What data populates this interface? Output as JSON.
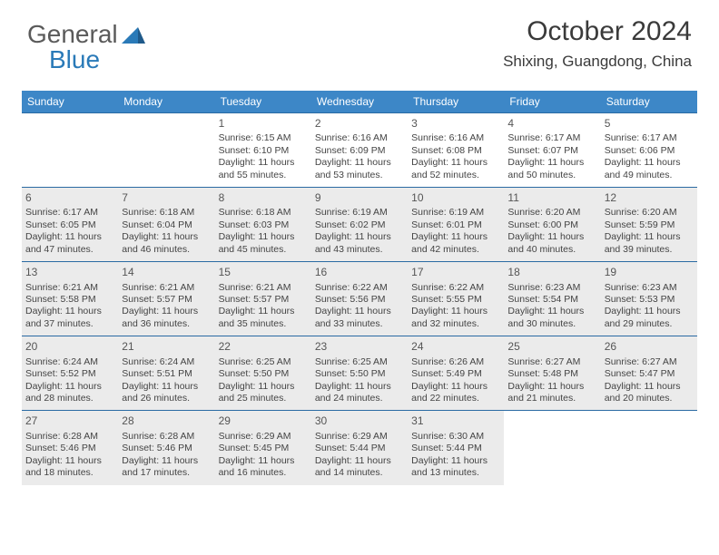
{
  "logo": {
    "text1": "General",
    "text2": "Blue"
  },
  "title": "October 2024",
  "subtitle": "Shixing, Guangdong, China",
  "colors": {
    "header_bg": "#3d87c7",
    "header_fg": "#ffffff",
    "cell_border": "#2a6aa3",
    "shade_bg": "#ebebeb",
    "text": "#444444",
    "logo_gray": "#5a5a5a",
    "logo_blue": "#2a7ab8"
  },
  "weekdays": [
    "Sunday",
    "Monday",
    "Tuesday",
    "Wednesday",
    "Thursday",
    "Friday",
    "Saturday"
  ],
  "weeks": [
    [
      {
        "day": "",
        "sunrise": "",
        "sunset": "",
        "daylight": "",
        "shade": false
      },
      {
        "day": "",
        "sunrise": "",
        "sunset": "",
        "daylight": "",
        "shade": false
      },
      {
        "day": "1",
        "sunrise": "Sunrise: 6:15 AM",
        "sunset": "Sunset: 6:10 PM",
        "daylight": "Daylight: 11 hours and 55 minutes.",
        "shade": false
      },
      {
        "day": "2",
        "sunrise": "Sunrise: 6:16 AM",
        "sunset": "Sunset: 6:09 PM",
        "daylight": "Daylight: 11 hours and 53 minutes.",
        "shade": false
      },
      {
        "day": "3",
        "sunrise": "Sunrise: 6:16 AM",
        "sunset": "Sunset: 6:08 PM",
        "daylight": "Daylight: 11 hours and 52 minutes.",
        "shade": false
      },
      {
        "day": "4",
        "sunrise": "Sunrise: 6:17 AM",
        "sunset": "Sunset: 6:07 PM",
        "daylight": "Daylight: 11 hours and 50 minutes.",
        "shade": false
      },
      {
        "day": "5",
        "sunrise": "Sunrise: 6:17 AM",
        "sunset": "Sunset: 6:06 PM",
        "daylight": "Daylight: 11 hours and 49 minutes.",
        "shade": false
      }
    ],
    [
      {
        "day": "6",
        "sunrise": "Sunrise: 6:17 AM",
        "sunset": "Sunset: 6:05 PM",
        "daylight": "Daylight: 11 hours and 47 minutes.",
        "shade": true
      },
      {
        "day": "7",
        "sunrise": "Sunrise: 6:18 AM",
        "sunset": "Sunset: 6:04 PM",
        "daylight": "Daylight: 11 hours and 46 minutes.",
        "shade": true
      },
      {
        "day": "8",
        "sunrise": "Sunrise: 6:18 AM",
        "sunset": "Sunset: 6:03 PM",
        "daylight": "Daylight: 11 hours and 45 minutes.",
        "shade": true
      },
      {
        "day": "9",
        "sunrise": "Sunrise: 6:19 AM",
        "sunset": "Sunset: 6:02 PM",
        "daylight": "Daylight: 11 hours and 43 minutes.",
        "shade": true
      },
      {
        "day": "10",
        "sunrise": "Sunrise: 6:19 AM",
        "sunset": "Sunset: 6:01 PM",
        "daylight": "Daylight: 11 hours and 42 minutes.",
        "shade": true
      },
      {
        "day": "11",
        "sunrise": "Sunrise: 6:20 AM",
        "sunset": "Sunset: 6:00 PM",
        "daylight": "Daylight: 11 hours and 40 minutes.",
        "shade": true
      },
      {
        "day": "12",
        "sunrise": "Sunrise: 6:20 AM",
        "sunset": "Sunset: 5:59 PM",
        "daylight": "Daylight: 11 hours and 39 minutes.",
        "shade": true
      }
    ],
    [
      {
        "day": "13",
        "sunrise": "Sunrise: 6:21 AM",
        "sunset": "Sunset: 5:58 PM",
        "daylight": "Daylight: 11 hours and 37 minutes.",
        "shade": true
      },
      {
        "day": "14",
        "sunrise": "Sunrise: 6:21 AM",
        "sunset": "Sunset: 5:57 PM",
        "daylight": "Daylight: 11 hours and 36 minutes.",
        "shade": true
      },
      {
        "day": "15",
        "sunrise": "Sunrise: 6:21 AM",
        "sunset": "Sunset: 5:57 PM",
        "daylight": "Daylight: 11 hours and 35 minutes.",
        "shade": true
      },
      {
        "day": "16",
        "sunrise": "Sunrise: 6:22 AM",
        "sunset": "Sunset: 5:56 PM",
        "daylight": "Daylight: 11 hours and 33 minutes.",
        "shade": true
      },
      {
        "day": "17",
        "sunrise": "Sunrise: 6:22 AM",
        "sunset": "Sunset: 5:55 PM",
        "daylight": "Daylight: 11 hours and 32 minutes.",
        "shade": true
      },
      {
        "day": "18",
        "sunrise": "Sunrise: 6:23 AM",
        "sunset": "Sunset: 5:54 PM",
        "daylight": "Daylight: 11 hours and 30 minutes.",
        "shade": true
      },
      {
        "day": "19",
        "sunrise": "Sunrise: 6:23 AM",
        "sunset": "Sunset: 5:53 PM",
        "daylight": "Daylight: 11 hours and 29 minutes.",
        "shade": true
      }
    ],
    [
      {
        "day": "20",
        "sunrise": "Sunrise: 6:24 AM",
        "sunset": "Sunset: 5:52 PM",
        "daylight": "Daylight: 11 hours and 28 minutes.",
        "shade": true
      },
      {
        "day": "21",
        "sunrise": "Sunrise: 6:24 AM",
        "sunset": "Sunset: 5:51 PM",
        "daylight": "Daylight: 11 hours and 26 minutes.",
        "shade": true
      },
      {
        "day": "22",
        "sunrise": "Sunrise: 6:25 AM",
        "sunset": "Sunset: 5:50 PM",
        "daylight": "Daylight: 11 hours and 25 minutes.",
        "shade": true
      },
      {
        "day": "23",
        "sunrise": "Sunrise: 6:25 AM",
        "sunset": "Sunset: 5:50 PM",
        "daylight": "Daylight: 11 hours and 24 minutes.",
        "shade": true
      },
      {
        "day": "24",
        "sunrise": "Sunrise: 6:26 AM",
        "sunset": "Sunset: 5:49 PM",
        "daylight": "Daylight: 11 hours and 22 minutes.",
        "shade": true
      },
      {
        "day": "25",
        "sunrise": "Sunrise: 6:27 AM",
        "sunset": "Sunset: 5:48 PM",
        "daylight": "Daylight: 11 hours and 21 minutes.",
        "shade": true
      },
      {
        "day": "26",
        "sunrise": "Sunrise: 6:27 AM",
        "sunset": "Sunset: 5:47 PM",
        "daylight": "Daylight: 11 hours and 20 minutes.",
        "shade": true
      }
    ],
    [
      {
        "day": "27",
        "sunrise": "Sunrise: 6:28 AM",
        "sunset": "Sunset: 5:46 PM",
        "daylight": "Daylight: 11 hours and 18 minutes.",
        "shade": true
      },
      {
        "day": "28",
        "sunrise": "Sunrise: 6:28 AM",
        "sunset": "Sunset: 5:46 PM",
        "daylight": "Daylight: 11 hours and 17 minutes.",
        "shade": true
      },
      {
        "day": "29",
        "sunrise": "Sunrise: 6:29 AM",
        "sunset": "Sunset: 5:45 PM",
        "daylight": "Daylight: 11 hours and 16 minutes.",
        "shade": true
      },
      {
        "day": "30",
        "sunrise": "Sunrise: 6:29 AM",
        "sunset": "Sunset: 5:44 PM",
        "daylight": "Daylight: 11 hours and 14 minutes.",
        "shade": true
      },
      {
        "day": "31",
        "sunrise": "Sunrise: 6:30 AM",
        "sunset": "Sunset: 5:44 PM",
        "daylight": "Daylight: 11 hours and 13 minutes.",
        "shade": true
      },
      {
        "day": "",
        "sunrise": "",
        "sunset": "",
        "daylight": "",
        "shade": false
      },
      {
        "day": "",
        "sunrise": "",
        "sunset": "",
        "daylight": "",
        "shade": false
      }
    ]
  ]
}
